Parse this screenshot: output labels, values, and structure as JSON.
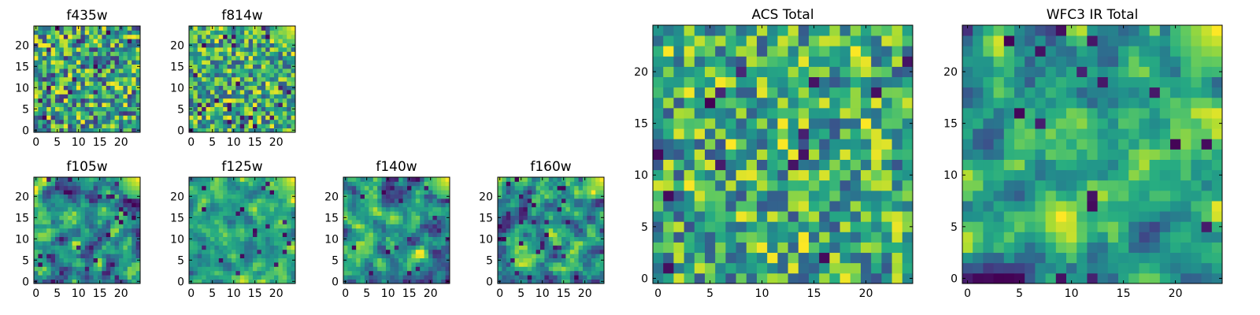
{
  "chart_data": [
    {
      "type": "heatmap",
      "title": "f435w",
      "xticks": [
        0,
        5,
        10,
        15,
        20
      ],
      "yticks": [
        0,
        5,
        10,
        15,
        20
      ],
      "xlim": [
        -0.5,
        24.5
      ],
      "ylim": [
        -0.5,
        24.5
      ],
      "grid_size": 25,
      "colormap": "viridis",
      "seed": 11,
      "pattern": "uniform-noise",
      "bright_corner": false
    },
    {
      "type": "heatmap",
      "title": "f814w",
      "xticks": [
        0,
        5,
        10,
        15,
        20
      ],
      "yticks": [
        0,
        5,
        10,
        15,
        20
      ],
      "xlim": [
        -0.5,
        24.5
      ],
      "ylim": [
        -0.5,
        24.5
      ],
      "grid_size": 25,
      "colormap": "viridis",
      "seed": 23,
      "pattern": "bright-noise",
      "bright_corner": true
    },
    {
      "type": "heatmap",
      "title": "f105w",
      "xticks": [
        0,
        5,
        10,
        15,
        20
      ],
      "yticks": [
        0,
        5,
        10,
        15,
        20
      ],
      "xlim": [
        -0.5,
        24.5
      ],
      "ylim": [
        -0.5,
        24.5
      ],
      "grid_size": 25,
      "colormap": "viridis",
      "seed": 37,
      "pattern": "smooth-noise",
      "bright_corner": true
    },
    {
      "type": "heatmap",
      "title": "f125w",
      "xticks": [
        0,
        5,
        10,
        15,
        20
      ],
      "yticks": [
        0,
        5,
        10,
        15,
        20
      ],
      "xlim": [
        -0.5,
        24.5
      ],
      "ylim": [
        -0.5,
        24.5
      ],
      "grid_size": 25,
      "colormap": "viridis",
      "seed": 41,
      "pattern": "bright-smooth-noise",
      "bright_corner": true
    },
    {
      "type": "heatmap",
      "title": "f140w",
      "xticks": [
        0,
        5,
        10,
        15,
        20
      ],
      "yticks": [
        0,
        5,
        10,
        15,
        20
      ],
      "xlim": [
        -0.5,
        24.5
      ],
      "ylim": [
        -0.5,
        24.5
      ],
      "grid_size": 25,
      "colormap": "viridis",
      "seed": 53,
      "pattern": "smooth-noise",
      "bright_corner": true
    },
    {
      "type": "heatmap",
      "title": "f160w",
      "xticks": [
        0,
        5,
        10,
        15,
        20
      ],
      "yticks": [
        0,
        5,
        10,
        15,
        20
      ],
      "xlim": [
        -0.5,
        24.5
      ],
      "ylim": [
        -0.5,
        24.5
      ],
      "grid_size": 25,
      "colormap": "viridis",
      "seed": 67,
      "pattern": "smooth-noise",
      "bright_corner": true
    },
    {
      "type": "heatmap",
      "title": "ACS Total",
      "xticks": [
        0,
        5,
        10,
        15,
        20
      ],
      "yticks": [
        0,
        5,
        10,
        15,
        20
      ],
      "xlim": [
        -0.5,
        24.5
      ],
      "ylim": [
        -0.5,
        24.5
      ],
      "grid_size": 25,
      "colormap": "viridis",
      "seed": 79,
      "pattern": "bright-noise",
      "bright_corner": false
    },
    {
      "type": "heatmap",
      "title": "WFC3 IR Total",
      "xticks": [
        0,
        5,
        10,
        15,
        20
      ],
      "yticks": [
        0,
        5,
        10,
        15,
        20
      ],
      "xlim": [
        -0.5,
        24.5
      ],
      "ylim": [
        -0.5,
        24.5
      ],
      "grid_size": 25,
      "colormap": "viridis",
      "seed": 97,
      "pattern": "smooth-noise",
      "bright_corner": true
    }
  ]
}
